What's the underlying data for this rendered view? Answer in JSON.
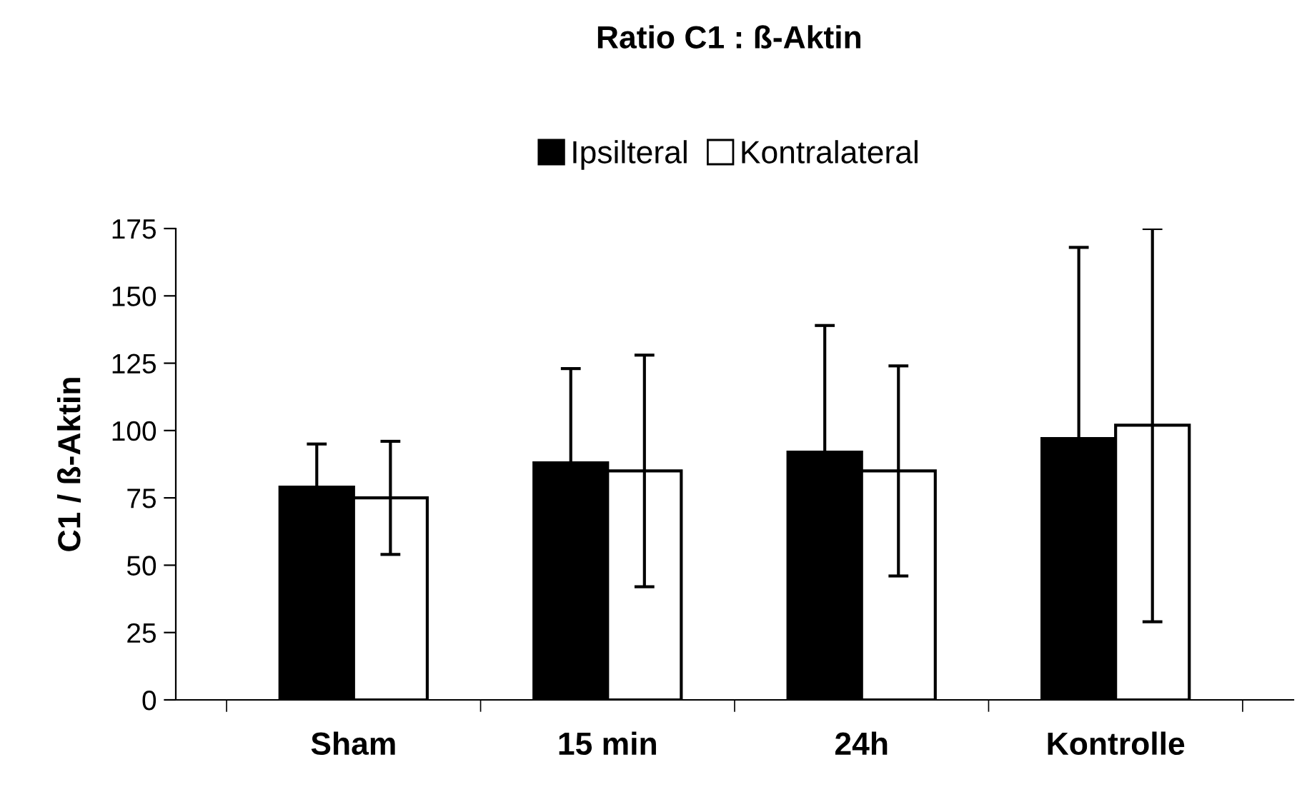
{
  "chart_data": {
    "type": "bar",
    "title": "Ratio C1 : ß-Aktin",
    "ylabel": "C1 / ß-Aktin",
    "categories": [
      "Sham",
      "15 min",
      "24h",
      "Kontrolle"
    ],
    "series": [
      {
        "name": "Ipsilteral",
        "color": "#000000",
        "values": [
          79,
          88,
          92,
          97
        ],
        "errors": [
          16,
          35,
          47,
          71
        ]
      },
      {
        "name": "Kontralateral",
        "color": "#ffffff",
        "values": [
          75,
          85,
          85,
          102
        ],
        "errors": [
          21,
          43,
          39,
          73
        ]
      }
    ],
    "ylim": [
      0,
      175
    ],
    "yticks": [
      0,
      25,
      50,
      75,
      100,
      125,
      150,
      175
    ],
    "grid": false,
    "legend": "top"
  }
}
